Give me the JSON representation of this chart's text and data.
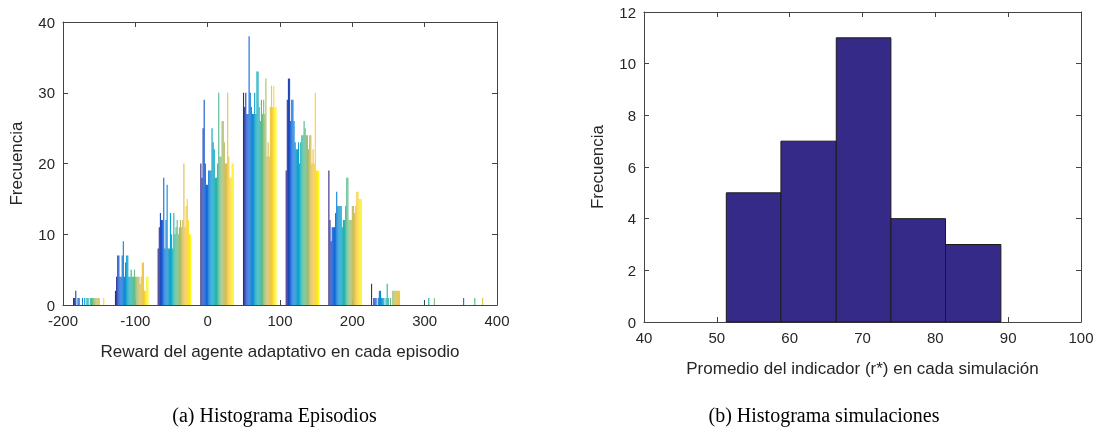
{
  "chart_data": [
    {
      "type": "bar",
      "xlabel": "Reward del agente adaptativo en cada episodio",
      "ylabel": "Frecuencia",
      "annotations": [
        "(a) Histograma Episodios"
      ],
      "x": [
        -163,
        -105,
        -46,
        13,
        72,
        131,
        190,
        249,
        308,
        367
      ],
      "xlim": [
        -200,
        400
      ],
      "xticks": [
        -200,
        -100,
        0,
        100,
        200,
        300,
        400
      ],
      "ylim": [
        0,
        40
      ],
      "yticks": [
        0,
        10,
        20,
        30,
        40
      ],
      "series": [
        {
          "color": "#352a87",
          "values": [
            1,
            2,
            8,
            20,
            30,
            19,
            19,
            3,
            0,
            0
          ]
        },
        {
          "color": "#2b389e",
          "values": [
            1,
            4,
            11,
            18,
            28,
            29,
            12,
            0,
            0,
            0
          ]
        },
        {
          "color": "#2045b6",
          "values": [
            2,
            7,
            13,
            25,
            30,
            32,
            9,
            1,
            0,
            0
          ]
        },
        {
          "color": "#1653ce",
          "values": [
            0,
            7,
            12,
            29,
            27,
            32,
            11,
            1,
            0,
            0
          ]
        },
        {
          "color": "#1060dc",
          "values": [
            1,
            4,
            12,
            20,
            27,
            26,
            11,
            1,
            0,
            0
          ]
        },
        {
          "color": "#116ada",
          "values": [
            1,
            4,
            18,
            17,
            38,
            29,
            11,
            0,
            0,
            0
          ]
        },
        {
          "color": "#1274d8",
          "values": [
            0,
            7,
            8,
            17,
            30,
            29,
            13,
            1,
            0,
            1
          ]
        },
        {
          "color": "#147ed6",
          "values": [
            0,
            9,
            12,
            19,
            28,
            26,
            16,
            2,
            0,
            0
          ]
        },
        {
          "color": "#1188d3",
          "values": [
            1,
            4,
            17,
            19,
            27,
            23,
            14,
            2,
            0,
            0
          ]
        },
        {
          "color": "#0d92d0",
          "values": [
            0,
            6,
            8,
            19,
            27,
            22,
            14,
            1,
            0,
            0
          ]
        },
        {
          "color": "#099ccd",
          "values": [
            1,
            7,
            8,
            25,
            30,
            22,
            14,
            1,
            0,
            0
          ]
        },
        {
          "color": "#07a5c9",
          "values": [
            0,
            7,
            13,
            23,
            27,
            23,
            14,
            1,
            0,
            0
          ]
        },
        {
          "color": "#12aabe",
          "values": [
            1,
            4,
            10,
            22,
            33,
            20,
            11,
            0,
            0,
            0
          ]
        },
        {
          "color": "#1eafb4",
          "values": [
            1,
            4,
            8,
            18,
            33,
            23,
            12,
            1,
            1,
            0
          ]
        },
        {
          "color": "#28b4a9",
          "values": [
            0,
            5,
            13,
            18,
            28,
            24,
            12,
            3,
            0,
            0
          ]
        },
        {
          "color": "#3ab89e",
          "values": [
            1,
            4,
            10,
            20,
            26,
            24,
            14,
            1,
            0,
            0
          ]
        },
        {
          "color": "#52ba92",
          "values": [
            1,
            4,
            11,
            30,
            29,
            26,
            18,
            0,
            0,
            1
          ]
        },
        {
          "color": "#6bbd85",
          "values": [
            1,
            5,
            12,
            21,
            27,
            25,
            18,
            1,
            0,
            0
          ]
        },
        {
          "color": "#84bf78",
          "values": [
            1,
            4,
            10,
            21,
            29,
            24,
            12,
            0,
            1,
            0
          ]
        },
        {
          "color": "#99be70",
          "values": [
            1,
            4,
            11,
            26,
            27,
            24,
            12,
            2,
            0,
            0
          ]
        },
        {
          "color": "#adbd67",
          "values": [
            1,
            4,
            12,
            26,
            32,
            22,
            12,
            2,
            0,
            0
          ]
        },
        {
          "color": "#c1bc5f",
          "values": [
            1,
            4,
            11,
            23,
            21,
            24,
            14,
            2,
            0,
            0
          ]
        },
        {
          "color": "#d4bc56",
          "values": [
            1,
            3,
            12,
            20,
            23,
            24,
            14,
            2,
            0,
            0
          ]
        },
        {
          "color": "#e0bf4c",
          "values": [
            1,
            4,
            20,
            20,
            21,
            20,
            13,
            2,
            0,
            1
          ]
        },
        {
          "color": "#edc341",
          "values": [
            0,
            6,
            11,
            30,
            28,
            22,
            14,
            2,
            0,
            0
          ]
        },
        {
          "color": "#f9c736",
          "values": [
            0,
            6,
            14,
            21,
            31,
            20,
            16,
            2,
            0,
            0
          ]
        },
        {
          "color": "#fdd12c",
          "values": [
            0,
            2,
            15,
            18,
            28,
            30,
            16,
            0,
            0,
            0
          ]
        },
        {
          "color": "#fcdf22",
          "values": [
            1,
            2,
            12,
            18,
            31,
            19,
            15,
            0,
            0,
            0
          ]
        },
        {
          "color": "#fbed18",
          "values": [
            0,
            4,
            10,
            20,
            28,
            19,
            15,
            0,
            0,
            0
          ]
        },
        {
          "color": "#f9fb0e",
          "values": [
            0,
            4,
            10,
            20,
            28,
            19,
            15,
            0,
            0,
            0
          ]
        }
      ]
    },
    {
      "type": "histogram",
      "xlabel": "Promedio del indicador (r*) en cada simulación",
      "ylabel": "Frecuencia",
      "annotations": [
        "(b) Histograma simulaciones"
      ],
      "bins": [
        51.3,
        58.8,
        66.4,
        73.9,
        81.4,
        89.0
      ],
      "values": [
        5,
        7,
        11,
        4,
        3
      ],
      "color": "#352a87",
      "xlim": [
        40,
        100
      ],
      "xticks": [
        40,
        50,
        60,
        70,
        80,
        90,
        100
      ],
      "ylim": [
        0,
        12
      ],
      "yticks": [
        0,
        2,
        4,
        6,
        8,
        10,
        12
      ]
    }
  ]
}
